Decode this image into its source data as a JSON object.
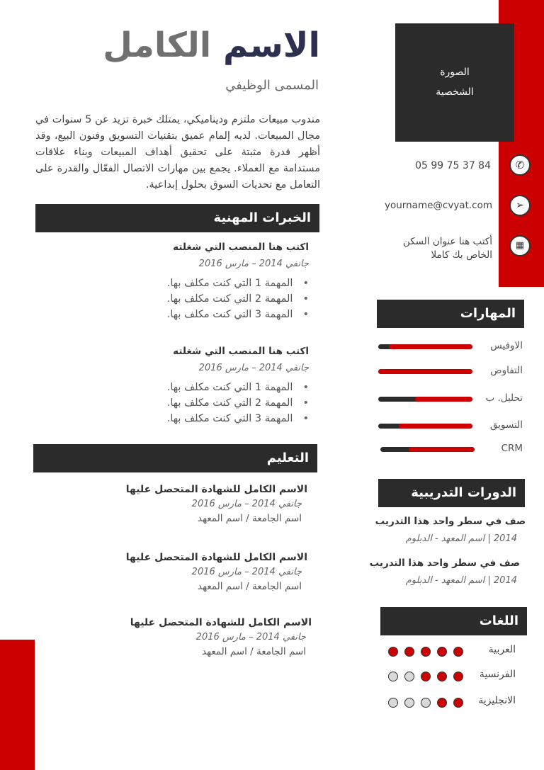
{
  "header": {
    "name_first": "الاسم",
    "name_last": "الكامل",
    "job_title": "المسمى الوظيفي",
    "summary": "مندوب مبيعات ملتزم وديناميكي، يمتلك خبرة تزيد عن 5 سنوات في مجال المبيعات. لديه إلمام عميق بتقنيات التسويق وفنون البيع، وقد أظهر قدرة مثبتة على تحقيق أهداف المبيعات وبناء علاقات مستدامة مع العملاء. يجمع بين مهارات الاتصال الفعّال والقدرة على التعامل مع تحديات السوق بحلول إبداعية."
  },
  "photo": {
    "line1": "الصورة",
    "line2": "الشخصية"
  },
  "contact": {
    "phone": "05 99 75 37 84",
    "email": "yourname@cvyat.com",
    "address_line1": "أكتب هنا عنوان السكن",
    "address_line2": "الخاص بك كاملا",
    "icons": [
      "phone-icon",
      "send-icon",
      "map-icon"
    ]
  },
  "experience": {
    "title": "الخبرات المهنية",
    "jobs": [
      {
        "position": "اكتب هنا المنصب التي شغلته",
        "date": "جانفي 2014 – مارس 2016",
        "tasks": [
          "المهمة 1 التي كنت مكلف بها.",
          "المهمة 2 التي كنت مكلف بها.",
          "المهمة 3 التي كنت مكلف بها."
        ]
      },
      {
        "position": "اكتب هنا المنصب التي شغلته",
        "date": "جانفي 2014 – مارس 2016",
        "tasks": [
          "المهمة 1 التي كنت مكلف بها.",
          "المهمة 2 التي كنت مكلف بها.",
          "المهمة 3 التي كنت مكلف بها."
        ]
      }
    ]
  },
  "education": {
    "title": "التعليم",
    "items": [
      {
        "degree": "الاسم الكامل للشهادة المتحصل عليها",
        "date": "جانفي 2014 – مارس 2016",
        "school": "اسم الجامعة / اسم المعهد"
      },
      {
        "degree": "الاسم الكامل للشهادة المتحصل عليها",
        "date": "جانفي 2014 – مارس 2016",
        "school": "اسم الجامعة / اسم المعهد"
      },
      {
        "degree": "الاسم الكامل للشهادة المتحصل عليها",
        "date": "جانفي 2014 – مارس 2016",
        "school": "اسم الجامعة / اسم المعهد"
      }
    ]
  },
  "skills": {
    "title": "المهارات",
    "items": [
      {
        "label": "الاوفيس",
        "level": 0.89
      },
      {
        "label": "التفاوض",
        "level": 1.0
      },
      {
        "label": "تحليل. ب",
        "level": 0.61
      },
      {
        "label": "التسويق",
        "level": 0.78
      },
      {
        "label": "CRM",
        "level": 0.7
      }
    ]
  },
  "courses": {
    "title": "الدورات التدريبية",
    "items": [
      {
        "name": "صف في سطر واحد هذا التدريب",
        "detail": "2014 | اسم المعهد - الدبلوم"
      },
      {
        "name": "صف في سطر واحد هذا التدريب",
        "detail": "2014 | اسم المعهد - الدبلوم"
      }
    ]
  },
  "languages": {
    "title": "اللغات",
    "items": [
      {
        "label": "العربية",
        "level": 5,
        "max": 5
      },
      {
        "label": "الفرنسية",
        "level": 3,
        "max": 5
      },
      {
        "label": "الانجليزية",
        "level": 2,
        "max": 5
      }
    ]
  },
  "colors": {
    "accent": "#cc0000",
    "dark": "#2b2b2b",
    "name_dark": "#2e3050",
    "name_gray": "#707070",
    "dot_empty": "#d9d9d9"
  }
}
